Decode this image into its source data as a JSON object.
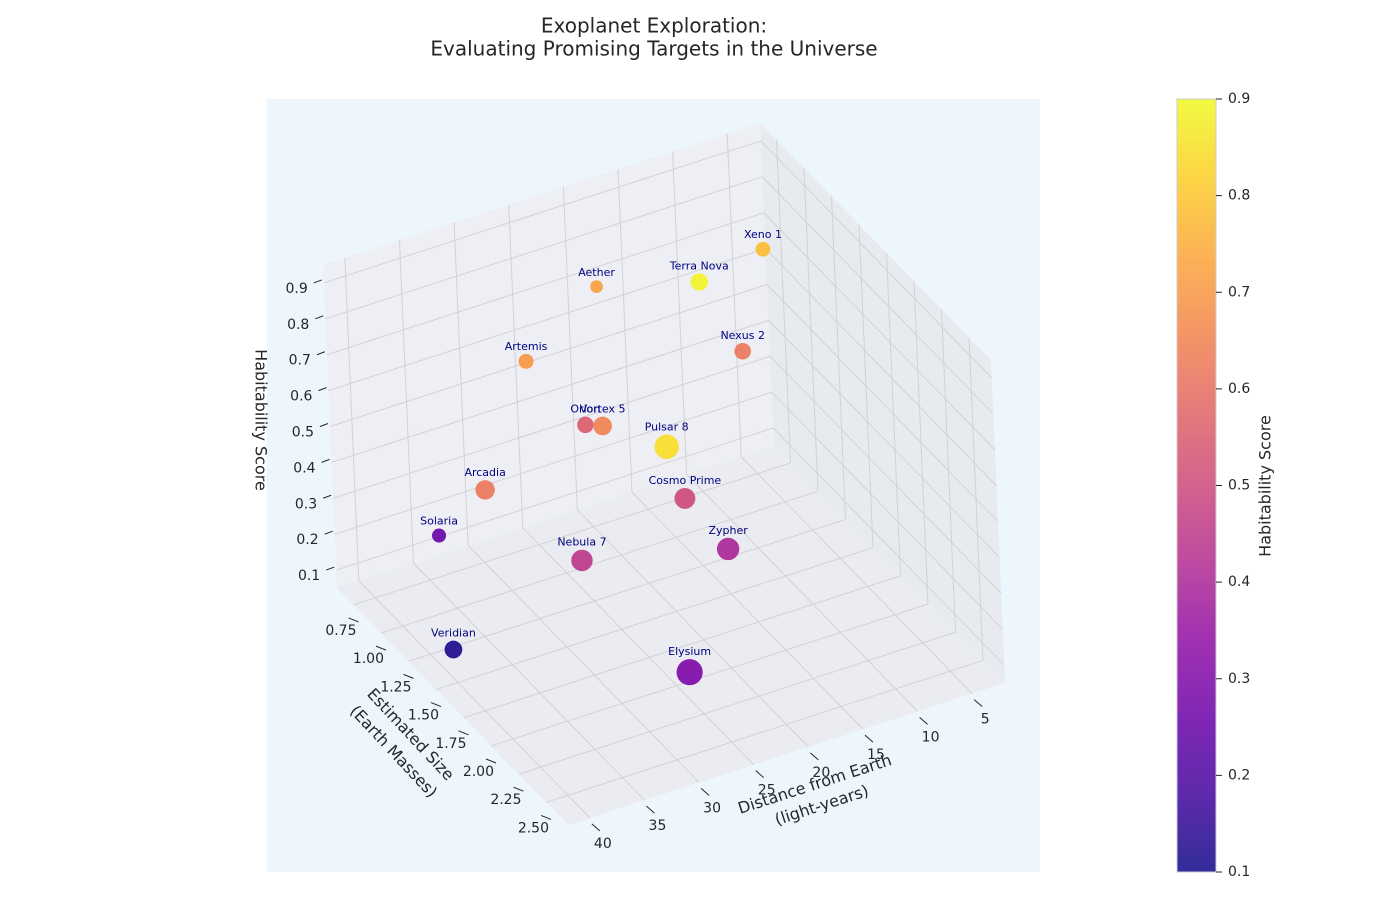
{
  "chart_data": {
    "type": "scatter3d",
    "title": [
      "Exoplanet Exploration:",
      "Evaluating Promising Targets in the Universe"
    ],
    "x_label": [
      "Distance from Earth",
      "(light-years)"
    ],
    "y_label": [
      "Estimated Size",
      "(Earth Masses)"
    ],
    "z_label": "Habitability Score",
    "colorbar_title": "Habitability Score",
    "points": [
      {
        "name": "Xeno 1",
        "distance": 6.4,
        "size": 1.04,
        "habitability": 0.78
      },
      {
        "name": "Terra Nova",
        "distance": 15.6,
        "size": 1.39,
        "habitability": 0.89
      },
      {
        "name": "Aether",
        "distance": 19.1,
        "size": 0.78,
        "habitability": 0.72
      },
      {
        "name": "Nexus 2",
        "distance": 11.0,
        "size": 1.29,
        "habitability": 0.62
      },
      {
        "name": "Artemis",
        "distance": 28.6,
        "size": 1.08,
        "habitability": 0.7
      },
      {
        "name": "Orion",
        "distance": 25.3,
        "size": 1.27,
        "habitability": 0.55
      },
      {
        "name": "Vortex 5",
        "distance": 26.5,
        "size": 1.56,
        "habitability": 0.65
      },
      {
        "name": "Pulsar 8",
        "distance": 28.1,
        "size": 2.33,
        "habitability": 0.85
      },
      {
        "name": "Arcadia",
        "distance": 38.3,
        "size": 1.66,
        "habitability": 0.62
      },
      {
        "name": "Cosmo Prime",
        "distance": 22.2,
        "size": 1.86,
        "habitability": 0.5
      },
      {
        "name": "Solaria",
        "distance": 36.0,
        "size": 0.96,
        "habitability": 0.25
      },
      {
        "name": "Zypher",
        "distance": 20.3,
        "size": 2.05,
        "habitability": 0.4
      },
      {
        "name": "Nebula 7",
        "distance": 32.4,
        "size": 1.93,
        "habitability": 0.45
      },
      {
        "name": "Veridian",
        "distance": 39.7,
        "size": 1.44,
        "habitability": 0.12
      },
      {
        "name": "Elysium",
        "distance": 29.0,
        "size": 2.55,
        "habitability": 0.3
      }
    ],
    "xlim": [
      2,
      42
    ],
    "xticks": [
      5,
      10,
      15,
      20,
      25,
      30,
      35,
      40
    ],
    "ylim": [
      0.6,
      2.7
    ],
    "yticks": [
      0.75,
      {
        "value": 1,
        "label": "1.00"
      },
      1.25,
      {
        "value": 1.5,
        "label": "1.50"
      },
      1.75,
      {
        "value": 2,
        "label": "2.00"
      },
      2.25,
      {
        "value": 2.5,
        "label": "2.50"
      }
    ],
    "zlim": [
      0.05,
      0.95
    ],
    "zticks": [
      0.1,
      0.2,
      0.3,
      0.4,
      0.5,
      0.6,
      0.7,
      0.8,
      0.9
    ],
    "clim": [
      0.1,
      0.9
    ],
    "colorbar_ticks": [
      0.1,
      0.2,
      0.3,
      0.4,
      0.5,
      0.6,
      0.7,
      0.8,
      0.9
    ],
    "colorscale": [
      "#0d0887",
      "#41049d",
      "#6a00a8",
      "#8f0da4",
      "#b12a90",
      "#cc4778",
      "#e16462",
      "#f2844b",
      "#fca636",
      "#fcce25",
      "#f0f921"
    ],
    "label_color": "#000080",
    "grid": true
  }
}
